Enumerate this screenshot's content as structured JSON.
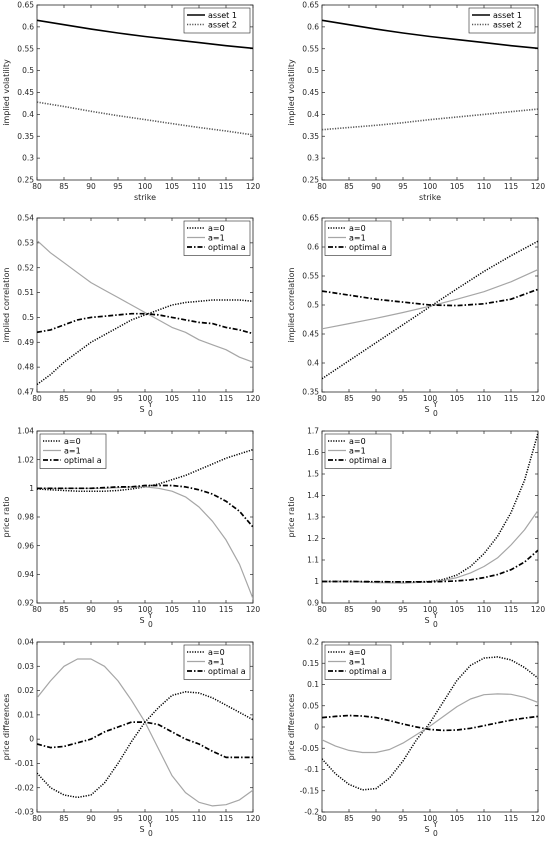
{
  "chart_data": [
    {
      "id": "p1",
      "type": "line",
      "xlabel": "strike",
      "ylabel": "implied volatility",
      "ylabel_sub": "",
      "xlim": [
        80,
        120
      ],
      "ylim": [
        0.25,
        0.65
      ],
      "xticks": [
        "80",
        "85",
        "90",
        "95",
        "100",
        "105",
        "110",
        "115",
        "120"
      ],
      "yticks": [
        "0.25",
        "0.3",
        "0.35",
        "0.4",
        "0.45",
        "0.5",
        "0.55",
        "0.6",
        "0.65"
      ],
      "legend": "top-right",
      "grid": false,
      "series": [
        {
          "name": "asset 1",
          "style": "solid-black",
          "x": [
            80,
            85,
            90,
            95,
            100,
            105,
            110,
            115,
            120
          ],
          "y": [
            0.615,
            0.605,
            0.595,
            0.586,
            0.578,
            0.571,
            0.564,
            0.557,
            0.551
          ]
        },
        {
          "name": "asset 2",
          "style": "dotted-gray",
          "x": [
            80,
            85,
            90,
            95,
            100,
            105,
            110,
            115,
            120
          ],
          "y": [
            0.428,
            0.418,
            0.407,
            0.397,
            0.388,
            0.379,
            0.37,
            0.362,
            0.353
          ]
        }
      ]
    },
    {
      "id": "p2",
      "type": "line",
      "xlabel": "strike",
      "ylabel": "implied volatility",
      "ylabel_sub": "",
      "xlim": [
        80,
        120
      ],
      "ylim": [
        0.25,
        0.65
      ],
      "xticks": [
        "80",
        "85",
        "90",
        "95",
        "100",
        "105",
        "110",
        "115",
        "120"
      ],
      "yticks": [
        "0.25",
        "0.3",
        "0.35",
        "0.4",
        "0.45",
        "0.5",
        "0.55",
        "0.6",
        "0.65"
      ],
      "legend": "top-right",
      "grid": false,
      "series": [
        {
          "name": "asset 1",
          "style": "solid-black",
          "x": [
            80,
            85,
            90,
            95,
            100,
            105,
            110,
            115,
            120
          ],
          "y": [
            0.615,
            0.605,
            0.595,
            0.586,
            0.578,
            0.571,
            0.564,
            0.557,
            0.551
          ]
        },
        {
          "name": "asset 2",
          "style": "dotted-gray",
          "x": [
            80,
            85,
            90,
            95,
            100,
            105,
            110,
            115,
            120
          ],
          "y": [
            0.365,
            0.37,
            0.375,
            0.381,
            0.388,
            0.394,
            0.4,
            0.406,
            0.412
          ]
        }
      ]
    },
    {
      "id": "p3",
      "type": "line",
      "xlabel": "S",
      "xlabel_sub": "0",
      "xlabel_sup": "Y",
      "ylabel": "implied correlation",
      "xlim": [
        80,
        120
      ],
      "ylim": [
        0.47,
        0.54
      ],
      "xticks": [
        "80",
        "85",
        "90",
        "95",
        "100",
        "105",
        "110",
        "115",
        "120"
      ],
      "yticks": [
        "0.47",
        "0.48",
        "0.49",
        "0.5",
        "0.51",
        "0.52",
        "0.53",
        "0.54"
      ],
      "legend": "top-right",
      "grid": false,
      "series": [
        {
          "name": "a=0",
          "style": "dotted-black",
          "x": [
            80,
            82.5,
            85,
            87.5,
            90,
            92.5,
            95,
            97.5,
            100,
            102.5,
            105,
            107.5,
            110,
            112.5,
            115,
            117.5,
            120
          ],
          "y": [
            0.473,
            0.477,
            0.482,
            0.486,
            0.49,
            0.493,
            0.496,
            0.499,
            0.501,
            0.503,
            0.505,
            0.506,
            0.5065,
            0.507,
            0.507,
            0.507,
            0.5065
          ]
        },
        {
          "name": "a=1",
          "style": "solid-gray",
          "x": [
            80,
            82.5,
            85,
            87.5,
            90,
            92.5,
            95,
            97.5,
            100,
            102.5,
            105,
            107.5,
            110,
            112.5,
            115,
            117.5,
            120
          ],
          "y": [
            0.531,
            0.526,
            0.522,
            0.518,
            0.514,
            0.511,
            0.508,
            0.505,
            0.502,
            0.499,
            0.496,
            0.494,
            0.491,
            0.489,
            0.487,
            0.484,
            0.482
          ]
        },
        {
          "name": "optimal a",
          "style": "dashdot-black",
          "x": [
            80,
            82.5,
            85,
            87.5,
            90,
            92.5,
            95,
            97.5,
            100,
            102.5,
            105,
            107.5,
            110,
            112.5,
            115,
            117.5,
            120
          ],
          "y": [
            0.494,
            0.495,
            0.497,
            0.499,
            0.5,
            0.5005,
            0.501,
            0.5015,
            0.5015,
            0.501,
            0.5,
            0.499,
            0.498,
            0.4975,
            0.496,
            0.495,
            0.4935
          ]
        }
      ]
    },
    {
      "id": "p4",
      "type": "line",
      "xlabel": "S",
      "xlabel_sub": "0",
      "xlabel_sup": "Y",
      "ylabel": "implied correlation",
      "xlim": [
        80,
        120
      ],
      "ylim": [
        0.35,
        0.65
      ],
      "xticks": [
        "80",
        "85",
        "90",
        "95",
        "100",
        "105",
        "110",
        "115",
        "120"
      ],
      "yticks": [
        "0.35",
        "0.4",
        "0.45",
        "0.5",
        "0.55",
        "0.6",
        "0.65"
      ],
      "legend": "top-left",
      "grid": false,
      "series": [
        {
          "name": "a=0",
          "style": "dotted-black",
          "x": [
            80,
            85,
            90,
            95,
            100,
            105,
            110,
            115,
            120
          ],
          "y": [
            0.373,
            0.404,
            0.435,
            0.466,
            0.497,
            0.528,
            0.558,
            0.585,
            0.61
          ]
        },
        {
          "name": "a=1",
          "style": "solid-gray",
          "x": [
            80,
            85,
            90,
            95,
            100,
            105,
            110,
            115,
            120
          ],
          "y": [
            0.459,
            0.468,
            0.477,
            0.487,
            0.498,
            0.51,
            0.523,
            0.54,
            0.561
          ]
        },
        {
          "name": "optimal a",
          "style": "dashdot-black",
          "x": [
            80,
            85,
            90,
            95,
            100,
            105,
            110,
            115,
            120
          ],
          "y": [
            0.524,
            0.517,
            0.51,
            0.505,
            0.5,
            0.499,
            0.502,
            0.51,
            0.527
          ]
        }
      ]
    },
    {
      "id": "p5",
      "type": "line",
      "xlabel": "S",
      "xlabel_sub": "0",
      "xlabel_sup": "Y",
      "ylabel": "price ratio",
      "xlim": [
        80,
        120
      ],
      "ylim": [
        0.92,
        1.04
      ],
      "xticks": [
        "80",
        "85",
        "90",
        "95",
        "100",
        "105",
        "110",
        "115",
        "120"
      ],
      "yticks": [
        "0.92",
        "0.94",
        "0.96",
        "0.98",
        "1",
        "1.02",
        "1.04"
      ],
      "legend": "top-left",
      "grid": false,
      "series": [
        {
          "name": "a=0",
          "style": "dotted-black",
          "x": [
            80,
            82.5,
            85,
            87.5,
            90,
            92.5,
            95,
            97.5,
            100,
            102.5,
            105,
            107.5,
            110,
            112.5,
            115,
            117.5,
            120
          ],
          "y": [
            0.9995,
            0.999,
            0.9985,
            0.998,
            0.998,
            0.998,
            0.9985,
            0.9995,
            1.001,
            1.003,
            1.006,
            1.009,
            1.013,
            1.017,
            1.021,
            1.024,
            1.027
          ]
        },
        {
          "name": "a=1",
          "style": "solid-gray",
          "x": [
            80,
            82.5,
            85,
            87.5,
            90,
            92.5,
            95,
            97.5,
            100,
            102.5,
            105,
            107.5,
            110,
            112.5,
            115,
            117.5,
            120
          ],
          "y": [
            1.0,
            1.0,
            1.0,
            1.0,
            1.0,
            1.0,
            1.0005,
            1.001,
            1.001,
            1.0,
            0.998,
            0.994,
            0.987,
            0.977,
            0.964,
            0.947,
            0.923
          ]
        },
        {
          "name": "optimal a",
          "style": "dashdot-black",
          "x": [
            80,
            82.5,
            85,
            87.5,
            90,
            92.5,
            95,
            97.5,
            100,
            102.5,
            105,
            107.5,
            110,
            112.5,
            115,
            117.5,
            120
          ],
          "y": [
            1.0,
            1.0,
            1.0,
            1.0,
            1.0,
            1.0005,
            1.001,
            1.001,
            1.002,
            1.002,
            1.002,
            1.001,
            0.999,
            0.996,
            0.991,
            0.984,
            0.973
          ]
        }
      ]
    },
    {
      "id": "p6",
      "type": "line",
      "xlabel": "S",
      "xlabel_sub": "0",
      "xlabel_sup": "Y",
      "ylabel": "price ratio",
      "xlim": [
        80,
        120
      ],
      "ylim": [
        0.9,
        1.7
      ],
      "xticks": [
        "80",
        "85",
        "90",
        "95",
        "100",
        "105",
        "110",
        "115",
        "120"
      ],
      "yticks": [
        "0.9",
        "1",
        "1.1",
        "1.2",
        "1.3",
        "1.4",
        "1.5",
        "1.6",
        "1.7"
      ],
      "legend": "top-left",
      "grid": false,
      "series": [
        {
          "name": "a=0",
          "style": "dotted-black",
          "x": [
            80,
            85,
            90,
            95,
            100,
            102.5,
            105,
            107.5,
            110,
            112.5,
            115,
            117.5,
            120
          ],
          "y": [
            1.0,
            1.0,
            0.998,
            0.997,
            1.0,
            1.01,
            1.03,
            1.07,
            1.13,
            1.21,
            1.32,
            1.47,
            1.69
          ]
        },
        {
          "name": "a=1",
          "style": "solid-gray",
          "x": [
            80,
            85,
            90,
            95,
            100,
            102.5,
            105,
            107.5,
            110,
            112.5,
            115,
            117.5,
            120
          ],
          "y": [
            1.0,
            0.999,
            0.995,
            0.992,
            0.998,
            1.005,
            1.018,
            1.04,
            1.07,
            1.11,
            1.17,
            1.24,
            1.33
          ]
        },
        {
          "name": "optimal a",
          "style": "dashdot-black",
          "x": [
            80,
            85,
            90,
            95,
            100,
            102.5,
            105,
            107.5,
            110,
            112.5,
            115,
            117.5,
            120
          ],
          "y": [
            1.0,
            1.0,
            0.999,
            0.998,
            0.998,
            1.0,
            1.003,
            1.008,
            1.018,
            1.032,
            1.055,
            1.09,
            1.145
          ]
        }
      ]
    },
    {
      "id": "p7",
      "type": "line",
      "xlabel": "S",
      "xlabel_sub": "0",
      "xlabel_sup": "Y",
      "ylabel": "price differences",
      "xlim": [
        80,
        120
      ],
      "ylim": [
        -0.03,
        0.04
      ],
      "xticks": [
        "80",
        "85",
        "90",
        "95",
        "100",
        "105",
        "110",
        "115",
        "120"
      ],
      "yticks": [
        "-0.03",
        "-0.02",
        "-0.01",
        "0",
        "0.01",
        "0.02",
        "0.03",
        "0.04"
      ],
      "legend": "top-right",
      "grid": false,
      "series": [
        {
          "name": "a=0",
          "style": "dotted-black",
          "x": [
            80,
            82.5,
            85,
            87.5,
            90,
            92.5,
            95,
            97.5,
            100,
            102.5,
            105,
            107.5,
            110,
            112.5,
            115,
            117.5,
            120
          ],
          "y": [
            -0.014,
            -0.02,
            -0.023,
            -0.024,
            -0.023,
            -0.018,
            -0.01,
            -0.001,
            0.007,
            0.013,
            0.018,
            0.0195,
            0.019,
            0.017,
            0.014,
            0.011,
            0.008
          ]
        },
        {
          "name": "a=1",
          "style": "solid-gray",
          "x": [
            80,
            82.5,
            85,
            87.5,
            90,
            92.5,
            95,
            97.5,
            100,
            102.5,
            105,
            107.5,
            110,
            112.5,
            115,
            117.5,
            120
          ],
          "y": [
            0.017,
            0.024,
            0.03,
            0.033,
            0.033,
            0.03,
            0.024,
            0.016,
            0.007,
            -0.004,
            -0.015,
            -0.022,
            -0.026,
            -0.0275,
            -0.027,
            -0.025,
            -0.021
          ]
        },
        {
          "name": "optimal a",
          "style": "dashdot-black",
          "x": [
            80,
            82.5,
            85,
            87.5,
            90,
            92.5,
            95,
            97.5,
            100,
            102.5,
            105,
            107.5,
            110,
            112.5,
            115,
            117.5,
            120
          ],
          "y": [
            -0.002,
            -0.0035,
            -0.003,
            -0.0015,
            0.0,
            0.003,
            0.005,
            0.007,
            0.007,
            0.006,
            0.003,
            0.0,
            -0.002,
            -0.005,
            -0.0075,
            -0.0075,
            -0.0075
          ]
        }
      ]
    },
    {
      "id": "p8",
      "type": "line",
      "xlabel": "S",
      "xlabel_sub": "0",
      "xlabel_sup": "Y",
      "ylabel": "price differences",
      "xlim": [
        80,
        120
      ],
      "ylim": [
        -0.2,
        0.2
      ],
      "xticks": [
        "80",
        "85",
        "90",
        "95",
        "100",
        "105",
        "110",
        "115",
        "120"
      ],
      "yticks": [
        "-0.2",
        "-0.15",
        "-0.1",
        "-0.05",
        "0",
        "0.05",
        "0.1",
        "0.15",
        "0.2"
      ],
      "legend": "top-left",
      "grid": false,
      "series": [
        {
          "name": "a=0",
          "style": "dotted-black",
          "x": [
            80,
            82.5,
            85,
            87.5,
            90,
            92.5,
            95,
            97.5,
            100,
            102.5,
            105,
            107.5,
            110,
            112.5,
            115,
            117.5,
            120
          ],
          "y": [
            -0.075,
            -0.11,
            -0.135,
            -0.148,
            -0.145,
            -0.12,
            -0.08,
            -0.03,
            0.01,
            0.06,
            0.11,
            0.145,
            0.162,
            0.165,
            0.158,
            0.14,
            0.115
          ]
        },
        {
          "name": "a=1",
          "style": "solid-gray",
          "x": [
            80,
            82.5,
            85,
            87.5,
            90,
            92.5,
            95,
            97.5,
            100,
            102.5,
            105,
            107.5,
            110,
            112.5,
            115,
            117.5,
            120
          ],
          "y": [
            -0.03,
            -0.045,
            -0.055,
            -0.06,
            -0.06,
            -0.053,
            -0.038,
            -0.018,
            0.002,
            0.025,
            0.048,
            0.066,
            0.076,
            0.078,
            0.077,
            0.07,
            0.058
          ]
        },
        {
          "name": "optimal a",
          "style": "dashdot-black",
          "x": [
            80,
            82.5,
            85,
            87.5,
            90,
            92.5,
            95,
            97.5,
            100,
            102.5,
            105,
            107.5,
            110,
            112.5,
            115,
            117.5,
            120
          ],
          "y": [
            0.022,
            0.025,
            0.027,
            0.026,
            0.022,
            0.015,
            0.007,
            0.0,
            -0.006,
            -0.008,
            -0.007,
            -0.003,
            0.003,
            0.01,
            0.016,
            0.021,
            0.025
          ]
        }
      ]
    }
  ]
}
